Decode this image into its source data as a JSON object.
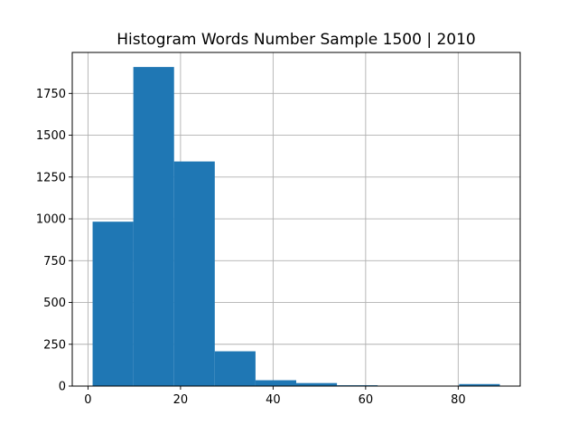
{
  "chart_data": {
    "type": "bar",
    "title": "Histogram Words Number Sample 1500 | 2010",
    "xlabel": "",
    "ylabel": "",
    "grid": true,
    "bar_color": "#1f77b4",
    "xlim": [
      -3.4,
      93.4
    ],
    "ylim": [
      0,
      1995
    ],
    "bin_edges": [
      1,
      9.8,
      18.6,
      27.4,
      36.2,
      45,
      53.8,
      62.6,
      71.4,
      80.2,
      89
    ],
    "values": [
      983,
      1908,
      1343,
      208,
      35,
      18,
      5,
      0,
      0,
      12
    ],
    "x_ticks": [
      0,
      20,
      40,
      60,
      80
    ],
    "x_tick_labels": [
      "0",
      "20",
      "40",
      "60",
      "80"
    ],
    "y_ticks": [
      0,
      250,
      500,
      750,
      1000,
      1250,
      1500,
      1750
    ],
    "y_tick_labels": [
      "0",
      "250",
      "500",
      "750",
      "1000",
      "1250",
      "1500",
      "1750"
    ]
  }
}
